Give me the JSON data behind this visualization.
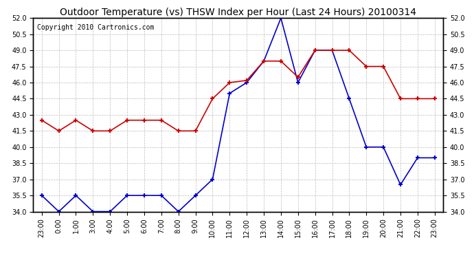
{
  "title": "Outdoor Temperature (vs) THSW Index per Hour (Last 24 Hours) 20100314",
  "copyright": "Copyright 2010 Cartronics.com",
  "x_ticks": [
    "23:00",
    "0:00",
    "1:00",
    "3:00",
    "4:00",
    "5:00",
    "6:00",
    "7:00",
    "8:00",
    "9:00",
    "10:00",
    "11:00",
    "12:00",
    "13:00",
    "14:00",
    "15:00",
    "16:00",
    "17:00",
    "18:00",
    "19:00",
    "20:00",
    "21:00",
    "22:00",
    "23:00"
  ],
  "blue_data": [
    35.5,
    34.0,
    35.5,
    34.0,
    34.0,
    35.5,
    35.5,
    35.5,
    34.0,
    35.5,
    37.0,
    45.0,
    46.0,
    48.0,
    52.0,
    46.0,
    49.0,
    49.0,
    44.5,
    40.0,
    40.0,
    36.5,
    39.0,
    39.0
  ],
  "red_data": [
    42.5,
    41.5,
    42.5,
    41.5,
    41.5,
    42.5,
    42.5,
    42.5,
    41.5,
    41.5,
    44.5,
    46.0,
    46.2,
    48.0,
    48.0,
    46.5,
    49.0,
    49.0,
    49.0,
    47.5,
    47.5,
    44.5,
    44.5,
    44.5
  ],
  "ylim": [
    34.0,
    52.0
  ],
  "yticks": [
    34.0,
    35.5,
    37.0,
    38.5,
    40.0,
    41.5,
    43.0,
    44.5,
    46.0,
    47.5,
    49.0,
    50.5,
    52.0
  ],
  "blue_color": "#0000cc",
  "red_color": "#cc0000",
  "bg_color": "#ffffff",
  "grid_color": "#bbbbbb",
  "title_fontsize": 10,
  "copyright_fontsize": 7
}
